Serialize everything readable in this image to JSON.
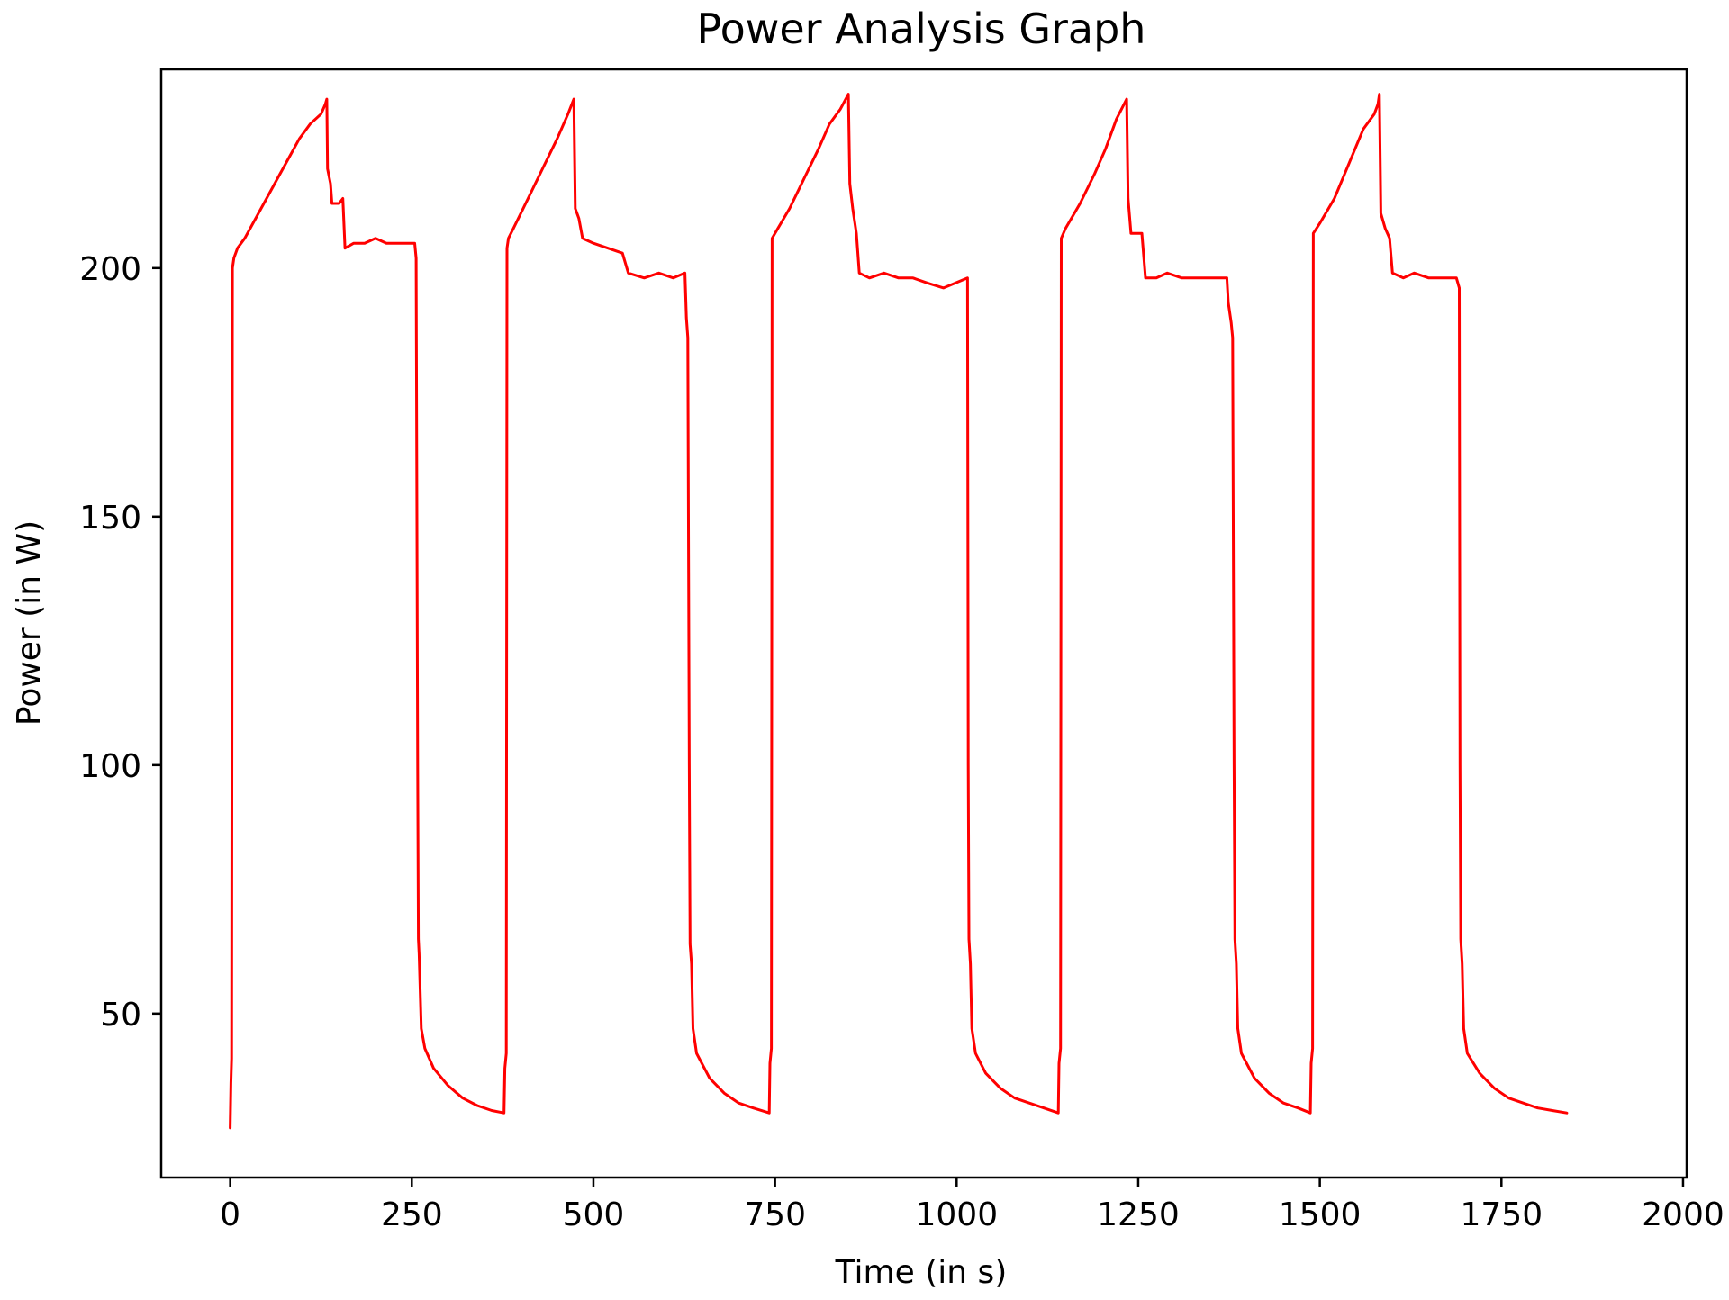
{
  "chart_data": {
    "type": "line",
    "title": "Power Analysis Graph",
    "xlabel": "Time (in s)",
    "ylabel": "Power (in W)",
    "xlim": [
      -95,
      2005
    ],
    "ylim": [
      17,
      240
    ],
    "xticks": [
      0,
      250,
      500,
      750,
      1000,
      1250,
      1500,
      1750,
      2000
    ],
    "yticks": [
      50,
      100,
      150,
      200
    ],
    "grid": false,
    "legend": false,
    "series": [
      {
        "color": "#ff0000",
        "cycle_period_s": 383,
        "cycle_count": 5,
        "final_time_s": 1915,
        "points": [
          [
            0,
            27
          ],
          [
            1,
            36
          ],
          [
            2,
            41
          ],
          [
            3,
            200
          ],
          [
            5,
            202
          ],
          [
            10,
            204
          ],
          [
            20,
            206
          ],
          [
            35,
            210
          ],
          [
            50,
            214
          ],
          [
            65,
            218
          ],
          [
            80,
            222
          ],
          [
            95,
            226
          ],
          [
            110,
            229
          ],
          [
            125,
            231
          ],
          [
            131,
            233
          ],
          [
            133,
            234
          ],
          [
            134,
            220
          ],
          [
            138,
            217
          ],
          [
            140,
            213
          ],
          [
            150,
            213
          ],
          [
            155,
            214
          ],
          [
            158,
            204
          ],
          [
            170,
            205
          ],
          [
            185,
            205
          ],
          [
            200,
            206
          ],
          [
            215,
            205
          ],
          [
            230,
            205
          ],
          [
            245,
            205
          ],
          [
            254,
            205
          ],
          [
            256,
            202
          ],
          [
            258,
            100
          ],
          [
            259,
            65
          ],
          [
            260,
            62
          ],
          [
            263,
            47
          ],
          [
            268,
            43
          ],
          [
            280,
            39
          ],
          [
            300,
            35.5
          ],
          [
            320,
            33
          ],
          [
            340,
            31.5
          ],
          [
            360,
            30.5
          ],
          [
            377,
            30
          ],
          [
            378,
            39
          ],
          [
            380,
            42
          ],
          [
            381,
            204
          ],
          [
            383,
            206
          ],
          [
            390,
            208
          ],
          [
            410,
            214
          ],
          [
            430,
            220
          ],
          [
            450,
            226
          ],
          [
            465,
            231
          ],
          [
            473,
            234
          ],
          [
            475,
            212
          ],
          [
            480,
            210
          ],
          [
            485,
            206
          ],
          [
            500,
            205
          ],
          [
            520,
            204
          ],
          [
            540,
            203
          ],
          [
            548,
            199
          ],
          [
            570,
            198
          ],
          [
            590,
            199
          ],
          [
            610,
            198
          ],
          [
            626,
            199
          ],
          [
            628,
            190
          ],
          [
            630,
            186
          ],
          [
            632,
            100
          ],
          [
            633,
            64
          ],
          [
            635,
            60
          ],
          [
            637,
            47
          ],
          [
            642,
            42
          ],
          [
            660,
            37
          ],
          [
            680,
            34
          ],
          [
            700,
            32
          ],
          [
            720,
            31
          ],
          [
            742,
            30
          ],
          [
            743,
            40
          ],
          [
            745,
            43
          ],
          [
            746,
            206
          ],
          [
            750,
            207
          ],
          [
            770,
            212
          ],
          [
            790,
            218
          ],
          [
            810,
            224
          ],
          [
            825,
            229
          ],
          [
            840,
            232
          ],
          [
            851,
            235
          ],
          [
            853,
            217
          ],
          [
            857,
            212
          ],
          [
            862,
            207
          ],
          [
            866,
            199
          ],
          [
            880,
            198
          ],
          [
            900,
            199
          ],
          [
            920,
            198
          ],
          [
            940,
            198
          ],
          [
            960,
            197
          ],
          [
            982,
            196
          ],
          [
            1015,
            198
          ],
          [
            1016,
            100
          ],
          [
            1017,
            65
          ],
          [
            1019,
            60
          ],
          [
            1021,
            47
          ],
          [
            1026,
            42
          ],
          [
            1040,
            38
          ],
          [
            1060,
            35
          ],
          [
            1080,
            33
          ],
          [
            1100,
            32
          ],
          [
            1120,
            31
          ],
          [
            1140,
            30
          ],
          [
            1141,
            40
          ],
          [
            1143,
            43
          ],
          [
            1144,
            206
          ],
          [
            1150,
            208
          ],
          [
            1170,
            213
          ],
          [
            1190,
            219
          ],
          [
            1205,
            224
          ],
          [
            1220,
            230
          ],
          [
            1234,
            234
          ],
          [
            1236,
            214
          ],
          [
            1240,
            207
          ],
          [
            1255,
            207
          ],
          [
            1260,
            198
          ],
          [
            1275,
            198
          ],
          [
            1290,
            199
          ],
          [
            1310,
            198
          ],
          [
            1330,
            198
          ],
          [
            1350,
            198
          ],
          [
            1372,
            198
          ],
          [
            1374,
            193
          ],
          [
            1378,
            189
          ],
          [
            1380,
            186
          ],
          [
            1382,
            100
          ],
          [
            1383,
            65
          ],
          [
            1385,
            60
          ],
          [
            1387,
            47
          ],
          [
            1392,
            42
          ],
          [
            1410,
            37
          ],
          [
            1430,
            34
          ],
          [
            1450,
            32
          ],
          [
            1470,
            31
          ],
          [
            1487,
            30
          ],
          [
            1488,
            40
          ],
          [
            1490,
            43
          ],
          [
            1491,
            207
          ],
          [
            1500,
            209
          ],
          [
            1520,
            214
          ],
          [
            1540,
            221
          ],
          [
            1560,
            228
          ],
          [
            1575,
            231
          ],
          [
            1580,
            233
          ],
          [
            1582,
            235
          ],
          [
            1584,
            211
          ],
          [
            1590,
            208
          ],
          [
            1596,
            206
          ],
          [
            1600,
            199
          ],
          [
            1615,
            198
          ],
          [
            1630,
            199
          ],
          [
            1650,
            198
          ],
          [
            1670,
            198
          ],
          [
            1688,
            198
          ],
          [
            1692,
            196
          ],
          [
            1693,
            100
          ],
          [
            1694,
            65
          ],
          [
            1696,
            60
          ],
          [
            1698,
            47
          ],
          [
            1703,
            42
          ],
          [
            1720,
            38
          ],
          [
            1740,
            35
          ],
          [
            1760,
            33
          ],
          [
            1780,
            32
          ],
          [
            1800,
            31
          ],
          [
            1820,
            30.5
          ],
          [
            1840,
            30
          ]
        ]
      }
    ]
  }
}
